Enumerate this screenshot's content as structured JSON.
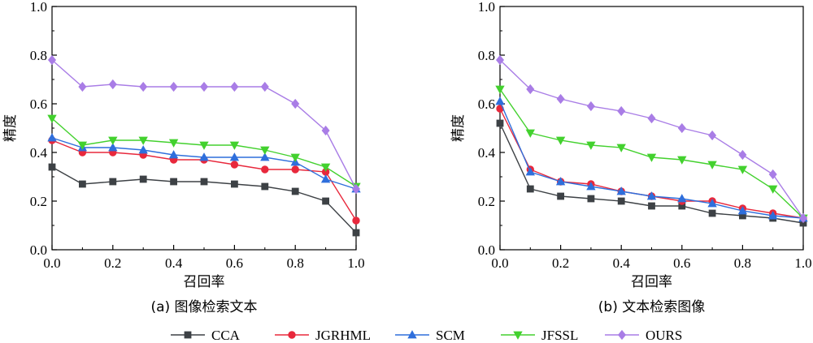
{
  "series_styles": [
    {
      "name": "CCA",
      "color": "#3d4145",
      "marker": "square"
    },
    {
      "name": "JGRHML",
      "color": "#e8283c",
      "marker": "circle"
    },
    {
      "name": "SCM",
      "color": "#2f6fdc",
      "marker": "triangle-up"
    },
    {
      "name": "JFSSL",
      "color": "#43d12e",
      "marker": "triangle-down"
    },
    {
      "name": "OURS",
      "color": "#a97de6",
      "marker": "diamond"
    }
  ],
  "chart_data": [
    {
      "type": "line",
      "title": "",
      "caption": "(a) 图像检索文本",
      "xlabel": "召回率",
      "ylabel": "精度",
      "xlim": [
        0,
        1
      ],
      "ylim": [
        0,
        1
      ],
      "xticks": [
        "0.0",
        "0.2",
        "0.4",
        "0.6",
        "0.8",
        "1.0"
      ],
      "yticks": [
        "0.0",
        "0.2",
        "0.4",
        "0.6",
        "0.8",
        "1.0"
      ],
      "grid": false,
      "x": [
        0.0,
        0.1,
        0.2,
        0.3,
        0.4,
        0.5,
        0.6,
        0.7,
        0.8,
        0.9,
        1.0
      ],
      "series": [
        {
          "name": "CCA",
          "values": [
            0.34,
            0.27,
            0.28,
            0.29,
            0.28,
            0.28,
            0.27,
            0.26,
            0.24,
            0.2,
            0.07
          ]
        },
        {
          "name": "JGRHML",
          "values": [
            0.45,
            0.4,
            0.4,
            0.39,
            0.37,
            0.37,
            0.35,
            0.33,
            0.33,
            0.32,
            0.12
          ]
        },
        {
          "name": "SCM",
          "values": [
            0.46,
            0.42,
            0.42,
            0.41,
            0.39,
            0.38,
            0.38,
            0.38,
            0.36,
            0.29,
            0.25
          ]
        },
        {
          "name": "JFSSL",
          "values": [
            0.54,
            0.43,
            0.45,
            0.45,
            0.44,
            0.43,
            0.43,
            0.41,
            0.38,
            0.34,
            0.26
          ]
        },
        {
          "name": "OURS",
          "values": [
            0.78,
            0.67,
            0.68,
            0.67,
            0.67,
            0.67,
            0.67,
            0.67,
            0.6,
            0.49,
            0.25
          ]
        }
      ]
    },
    {
      "type": "line",
      "title": "",
      "caption": "(b) 文本检索图像",
      "xlabel": "召回率",
      "ylabel": "精度",
      "xlim": [
        0,
        1
      ],
      "ylim": [
        0,
        1
      ],
      "xticks": [
        "0.0",
        "0.2",
        "0.4",
        "0.6",
        "0.8",
        "1.0"
      ],
      "yticks": [
        "0.0",
        "0.2",
        "0.4",
        "0.6",
        "0.8",
        "1.0"
      ],
      "grid": false,
      "x": [
        0.0,
        0.1,
        0.2,
        0.3,
        0.4,
        0.5,
        0.6,
        0.7,
        0.8,
        0.9,
        1.0
      ],
      "series": [
        {
          "name": "CCA",
          "values": [
            0.52,
            0.25,
            0.22,
            0.21,
            0.2,
            0.18,
            0.18,
            0.15,
            0.14,
            0.13,
            0.11
          ]
        },
        {
          "name": "JGRHML",
          "values": [
            0.58,
            0.33,
            0.28,
            0.27,
            0.24,
            0.22,
            0.2,
            0.2,
            0.17,
            0.15,
            0.13
          ]
        },
        {
          "name": "SCM",
          "values": [
            0.61,
            0.32,
            0.28,
            0.26,
            0.24,
            0.22,
            0.21,
            0.19,
            0.16,
            0.14,
            0.13
          ]
        },
        {
          "name": "JFSSL",
          "values": [
            0.66,
            0.48,
            0.45,
            0.43,
            0.42,
            0.38,
            0.37,
            0.35,
            0.33,
            0.25,
            0.13
          ]
        },
        {
          "name": "OURS",
          "values": [
            0.78,
            0.66,
            0.62,
            0.59,
            0.57,
            0.54,
            0.5,
            0.47,
            0.39,
            0.31,
            0.13
          ]
        }
      ]
    }
  ],
  "legend": {
    "placement": "bottom",
    "entries": [
      "CCA",
      "JGRHML",
      "SCM",
      "JFSSL",
      "OURS"
    ]
  }
}
